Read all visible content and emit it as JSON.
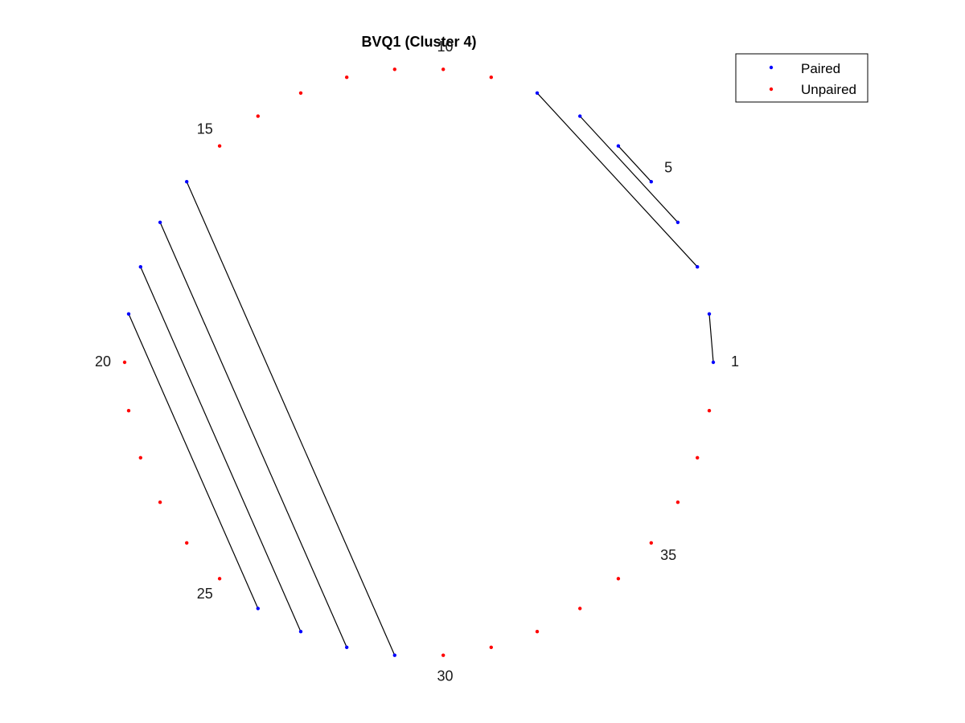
{
  "chart_data": {
    "type": "scatter",
    "title": "BVQ1 (Cluster 4)",
    "n_positions": 38,
    "start_angle_deg": 0,
    "direction": "counterclockwise",
    "index_labels": [
      1,
      5,
      10,
      15,
      20,
      25,
      30,
      35
    ],
    "paired_positions": [
      1,
      2,
      3,
      4,
      5,
      6,
      7,
      8,
      16,
      17,
      18,
      19,
      26,
      27,
      28,
      29
    ],
    "pairs": [
      [
        1,
        2
      ],
      [
        3,
        8
      ],
      [
        4,
        7
      ],
      [
        5,
        6
      ],
      [
        16,
        29
      ],
      [
        17,
        28
      ],
      [
        18,
        27
      ],
      [
        19,
        26
      ]
    ],
    "series": [
      {
        "name": "Paired",
        "color": "#0000ff"
      },
      {
        "name": "Unpaired",
        "color": "#ff0000"
      }
    ],
    "line_color": "#000000",
    "legend_position": "top-right",
    "grid": false
  }
}
